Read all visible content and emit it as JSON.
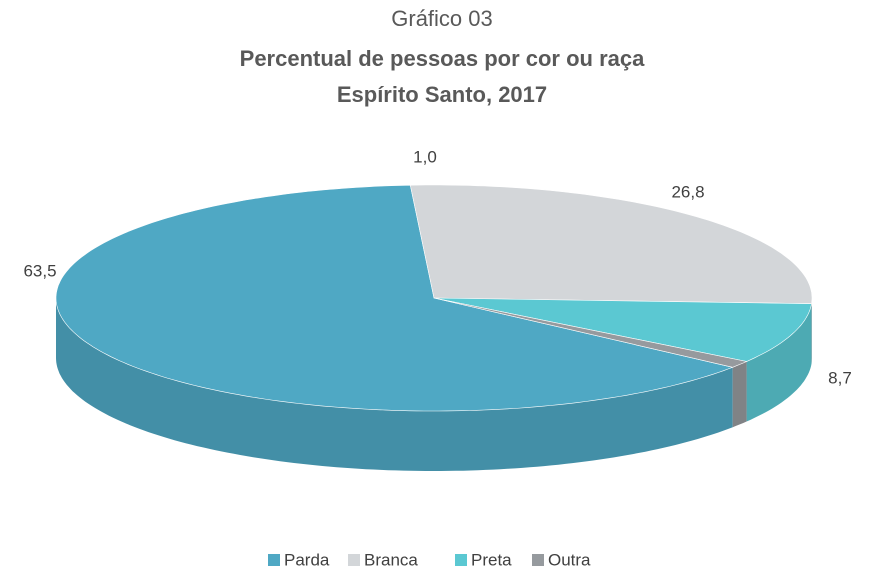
{
  "chart_data": {
    "type": "pie",
    "title": "Gráfico 03",
    "subtitle": [
      "Percentual de pessoas por cor ou raça",
      "Espírito Santo, 2017"
    ],
    "categories": [
      "Parda",
      "Branca",
      "Preta",
      "Outra"
    ],
    "values": [
      63.5,
      26.8,
      8.7,
      1.0
    ],
    "value_labels": [
      "63,5",
      "26,8",
      "8,7",
      "1,0"
    ],
    "colors": [
      "#4fa8c4",
      "#d3d6d9",
      "#5bc8d2",
      "#969a9e"
    ],
    "legend": "bottom"
  }
}
